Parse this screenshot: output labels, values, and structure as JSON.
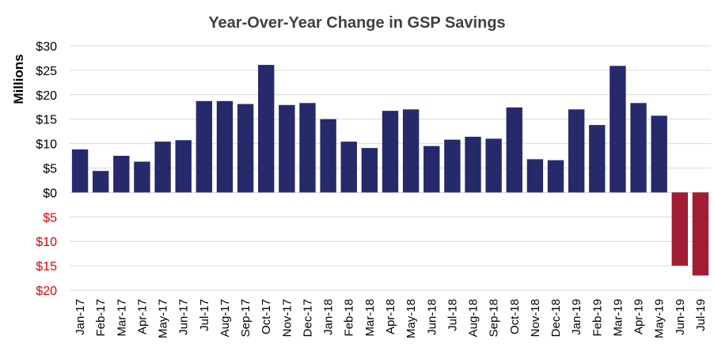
{
  "chart_data": {
    "type": "bar",
    "title": "Year-Over-Year Change in GSP Savings",
    "xlabel": "",
    "ylabel": "Millions",
    "ylim": [
      -20,
      30
    ],
    "yticks": [
      30,
      25,
      20,
      15,
      10,
      5,
      0,
      -5,
      -10,
      -15,
      -20
    ],
    "ytick_labels": [
      "$30",
      "$25",
      "$20",
      "$15",
      "$10",
      "$5",
      "$0",
      "$5",
      "$10",
      "$15",
      "$20"
    ],
    "grid": true,
    "categories": [
      "Jan-17",
      "Feb-17",
      "Mar-17",
      "Apr-17",
      "May-17",
      "Jun-17",
      "Jul-17",
      "Aug-17",
      "Sep-17",
      "Oct-17",
      "Nov-17",
      "Dec-17",
      "Jan-18",
      "Feb-18",
      "Mar-18",
      "Apr-18",
      "May-18",
      "Jun-18",
      "Jul-18",
      "Aug-18",
      "Sep-18",
      "Oct-18",
      "Nov-18",
      "Dec-18",
      "Jan-19",
      "Feb-19",
      "Mar-19",
      "Apr-19",
      "May-19",
      "Jun-19",
      "Jul-19"
    ],
    "values": [
      8.8,
      4.4,
      7.5,
      6.3,
      10.4,
      10.7,
      18.7,
      18.7,
      18.1,
      26.1,
      17.9,
      18.3,
      15.0,
      10.4,
      9.1,
      16.7,
      17.0,
      9.5,
      10.8,
      11.4,
      11.0,
      17.4,
      6.8,
      6.6,
      17.0,
      13.8,
      25.9,
      18.3,
      15.7,
      -15.0,
      -17.0
    ],
    "colors": {
      "positive": "#262a6b",
      "negative": "#a11d33",
      "positive_label": "#000000",
      "negative_label": "#e60000"
    }
  }
}
